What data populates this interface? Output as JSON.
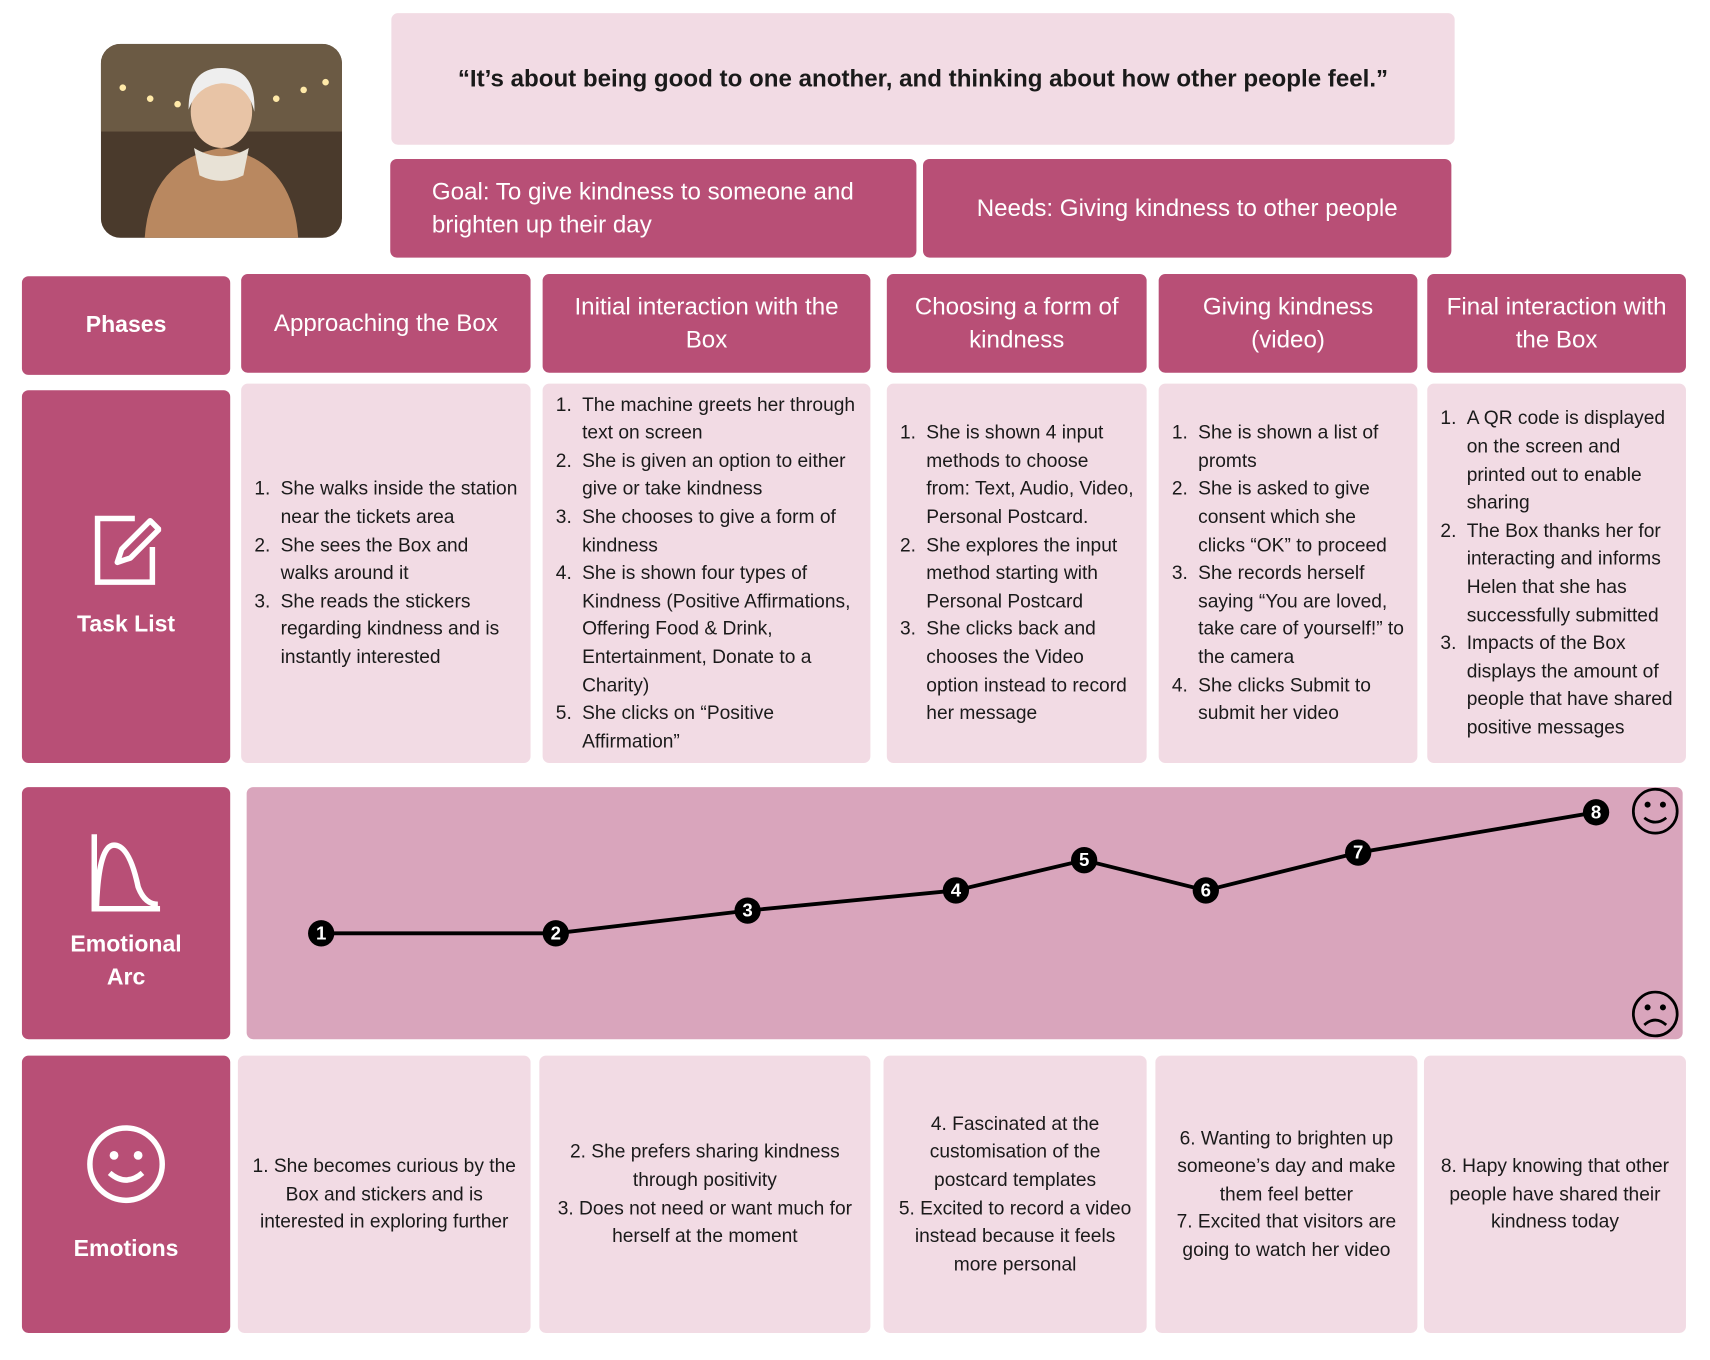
{
  "persona": {
    "quote": "“It’s about being good to one another, and thinking about how other people feel.”",
    "goal": "Goal:  To give kindness to someone and brighten up their day",
    "needs": "Needs: Giving kindness to other people"
  },
  "row_headers": {
    "phases": "Phases",
    "task_list": "Task List",
    "emotional_arc": "Emotional Arc",
    "emotions": "Emotions"
  },
  "phases": [
    {
      "title": "Approaching the Box",
      "tasks": [
        {
          "num": "1.",
          "text": "She walks inside the station near the tickets area"
        },
        {
          "num": "2.",
          "text": "She sees the Box and walks around it"
        },
        {
          "num": "3.",
          "text": "She reads the stickers regarding kindness and is instantly interested"
        }
      ],
      "emotions": [
        "1. She becomes curious by the Box and stickers and is interested in exploring further"
      ]
    },
    {
      "title": "Initial interaction with the Box",
      "tasks": [
        {
          "num": "1.",
          "text": "The machine greets her through text on screen"
        },
        {
          "num": "2.",
          "text": "She is given an option to either give or take kindness"
        },
        {
          "num": "3.",
          "text": "She chooses to give a form of kindness"
        },
        {
          "num": "4.",
          "text": "She is shown four types of Kindness (Positive Affirmations, Offering Food & Drink, Entertainment, Donate to a Charity)"
        },
        {
          "num": "5.",
          "text": "She clicks on “Positive Affirmation”"
        }
      ],
      "emotions": [
        "2. She prefers sharing kindness through positivity",
        "3. Does not need or want much for herself at the moment"
      ]
    },
    {
      "title": "Choosing a form of kindness",
      "tasks": [
        {
          "num": "1.",
          "text": "She is shown 4 input methods to choose from: Text, Audio, Video, Personal Postcard."
        },
        {
          "num": "2.",
          "text": "She explores the input method starting with Personal Postcard"
        },
        {
          "num": "3.",
          "text": "She clicks back and chooses the Video option instead to record her message"
        }
      ],
      "emotions": [
        "4. Fascinated at the customisation of the postcard templates",
        "5. Excited to record a video instead because it feels more personal"
      ]
    },
    {
      "title": "Giving kindness (video)",
      "tasks": [
        {
          "num": "1.",
          "text": "She is shown a list of promts"
        },
        {
          "num": "2.",
          "text": "She is asked to give consent which she clicks “OK” to proceed"
        },
        {
          "num": "3.",
          "text": "She records herself saying “You are loved, take care of yourself!” to the camera"
        },
        {
          "num": "4.",
          "text": "She clicks Submit to submit her video"
        }
      ],
      "emotions": [
        "6. Wanting to brighten up someone’s day and make them feel better",
        "7. Excited that visitors are going to watch her video"
      ]
    },
    {
      "title": "Final interaction with the Box",
      "tasks": [
        {
          "num": "1.",
          "text": "A QR code is displayed on the screen and printed out to enable sharing"
        },
        {
          "num": "2.",
          "text": "The Box thanks her for interacting and informs Helen that she has successfully submitted"
        },
        {
          "num": "3.",
          "text": "Impacts of the Box displays the amount of people that have shared positive messages"
        }
      ],
      "emotions": [
        "8. Hapy knowing that other people have shared their kindness today"
      ]
    }
  ],
  "emotional_arc": {
    "labels": [
      "1",
      "2",
      "3",
      "4",
      "5",
      "6",
      "7",
      "8"
    ],
    "levels": [
      42,
      42,
      51,
      59,
      71,
      59,
      74,
      90
    ],
    "ylim": [
      0,
      100
    ]
  }
}
